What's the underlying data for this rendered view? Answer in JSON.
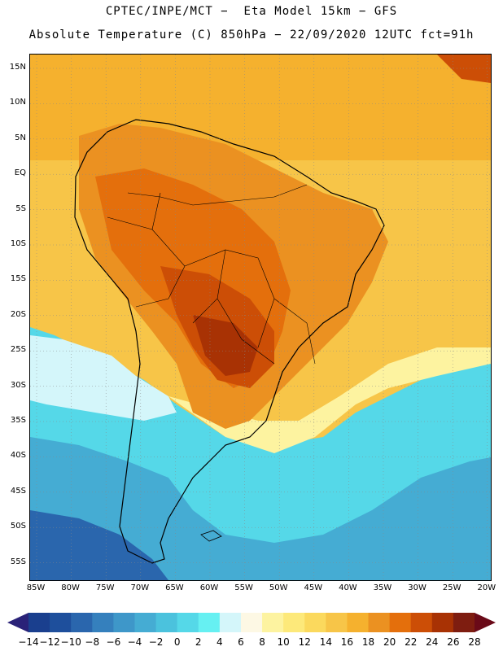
{
  "header": {
    "line1": "CPTEC/INPE/MCT −  Eta Model 15km − GFS",
    "line2": "Absolute Temperature (C) 850hPa − 22/09/2020 12UTC fct=91h"
  },
  "map": {
    "region": "South America",
    "lat_ticks": [
      "15N",
      "10N",
      "5N",
      "EQ",
      "5S",
      "10S",
      "15S",
      "20S",
      "25S",
      "30S",
      "35S",
      "40S",
      "45S",
      "50S",
      "55S"
    ],
    "lon_ticks": [
      "85W",
      "80W",
      "75W",
      "70W",
      "65W",
      "60W",
      "55W",
      "50W",
      "45W",
      "40W",
      "35W",
      "30W",
      "25W",
      "20W"
    ]
  },
  "colorbar": {
    "labels": [
      "−14",
      "−12",
      "−10",
      "−8",
      "−6",
      "−4",
      "−2",
      "0",
      "2",
      "4",
      "6",
      "8",
      "10",
      "12",
      "14",
      "16",
      "18",
      "20",
      "22",
      "24",
      "26",
      "28"
    ],
    "colors": [
      "#1a3f8e",
      "#1e4f9c",
      "#2a66ad",
      "#3580bd",
      "#3e97c9",
      "#45acd3",
      "#4bc2dd",
      "#55d8e8",
      "#66f0f2",
      "#d4f6fa",
      "#fdf8e4",
      "#fdf3a0",
      "#fde97a",
      "#fbd95d",
      "#f7c548",
      "#f5b12e",
      "#eb9121",
      "#e46f0c",
      "#cc4e06",
      "#a83204",
      "#7e1d10"
    ],
    "arrow_low": "#2a2278",
    "arrow_high": "#6a0a18"
  }
}
